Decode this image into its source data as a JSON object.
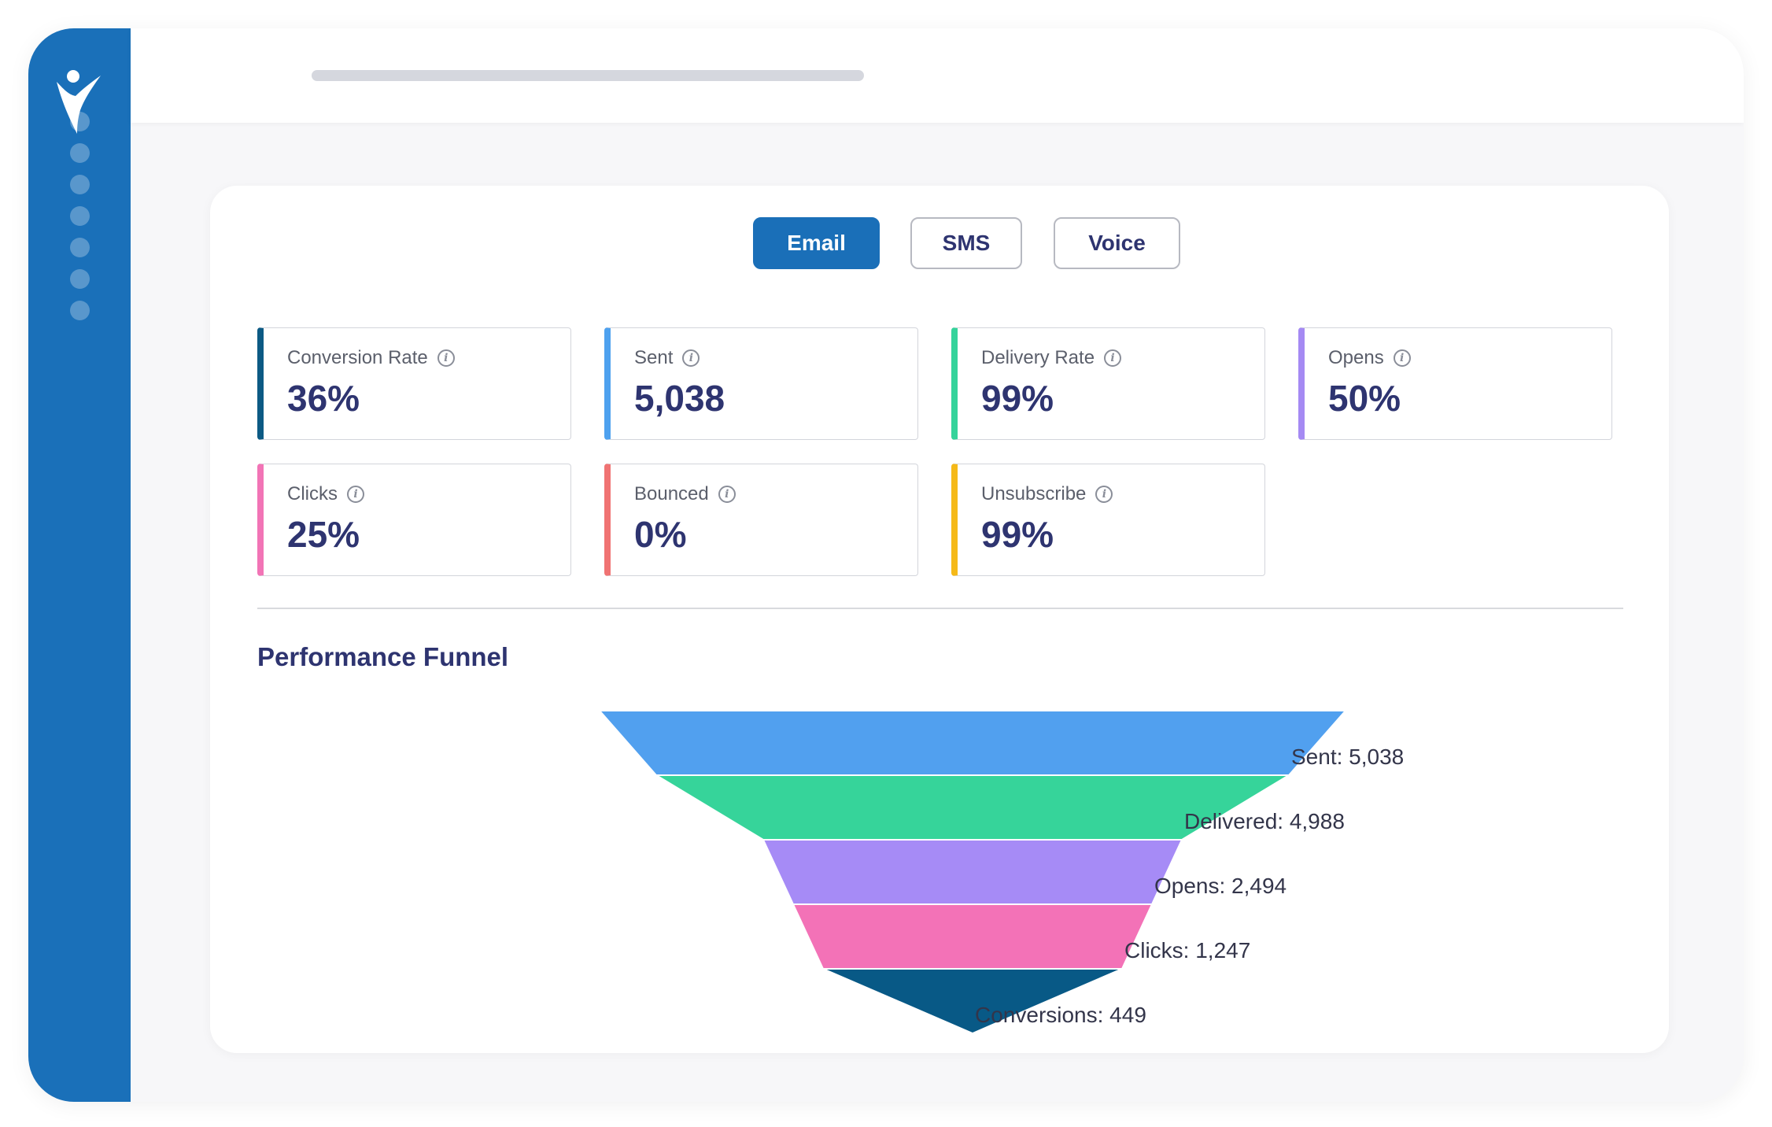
{
  "tabs": [
    {
      "label": "Email",
      "active": true
    },
    {
      "label": "SMS",
      "active": false
    },
    {
      "label": "Voice",
      "active": false
    }
  ],
  "metrics": [
    {
      "label": "Conversion Rate",
      "value": "36%",
      "color": "#0c5a84"
    },
    {
      "label": "Sent",
      "value": "5,038",
      "color": "#4ea1ef"
    },
    {
      "label": "Delivery Rate",
      "value": "99%",
      "color": "#35d39b"
    },
    {
      "label": "Opens",
      "value": "50%",
      "color": "#a58af3"
    },
    {
      "label": "Clicks",
      "value": "25%",
      "color": "#f274b6"
    },
    {
      "label": "Bounced",
      "value": "0%",
      "color": "#f07373"
    },
    {
      "label": "Unsubscribe",
      "value": "99%",
      "color": "#f5b918"
    }
  ],
  "info_icon": "info-circle-icon",
  "section_title": "Performance Funnel",
  "chart_data": {
    "type": "funnel",
    "stages": [
      {
        "label": "Sent: 5,038",
        "name": "Sent",
        "value": 5038,
        "color": "#51a0ef"
      },
      {
        "label": "Delivered: 4,988",
        "name": "Delivered",
        "value": 4988,
        "color": "#36d49a"
      },
      {
        "label": "Opens: 2,494",
        "name": "Opens",
        "value": 2494,
        "color": "#a68bf6"
      },
      {
        "label": "Clicks: 1,247",
        "name": "Clicks",
        "value": 1247,
        "color": "#f372b7"
      },
      {
        "label": "Conversions: 449",
        "name": "Conversions",
        "value": 449,
        "color": "#085986"
      }
    ]
  },
  "colors": {
    "sidebar": "#1a70b9",
    "accent": "#1a6fb8",
    "text_dark": "#2e3470"
  }
}
